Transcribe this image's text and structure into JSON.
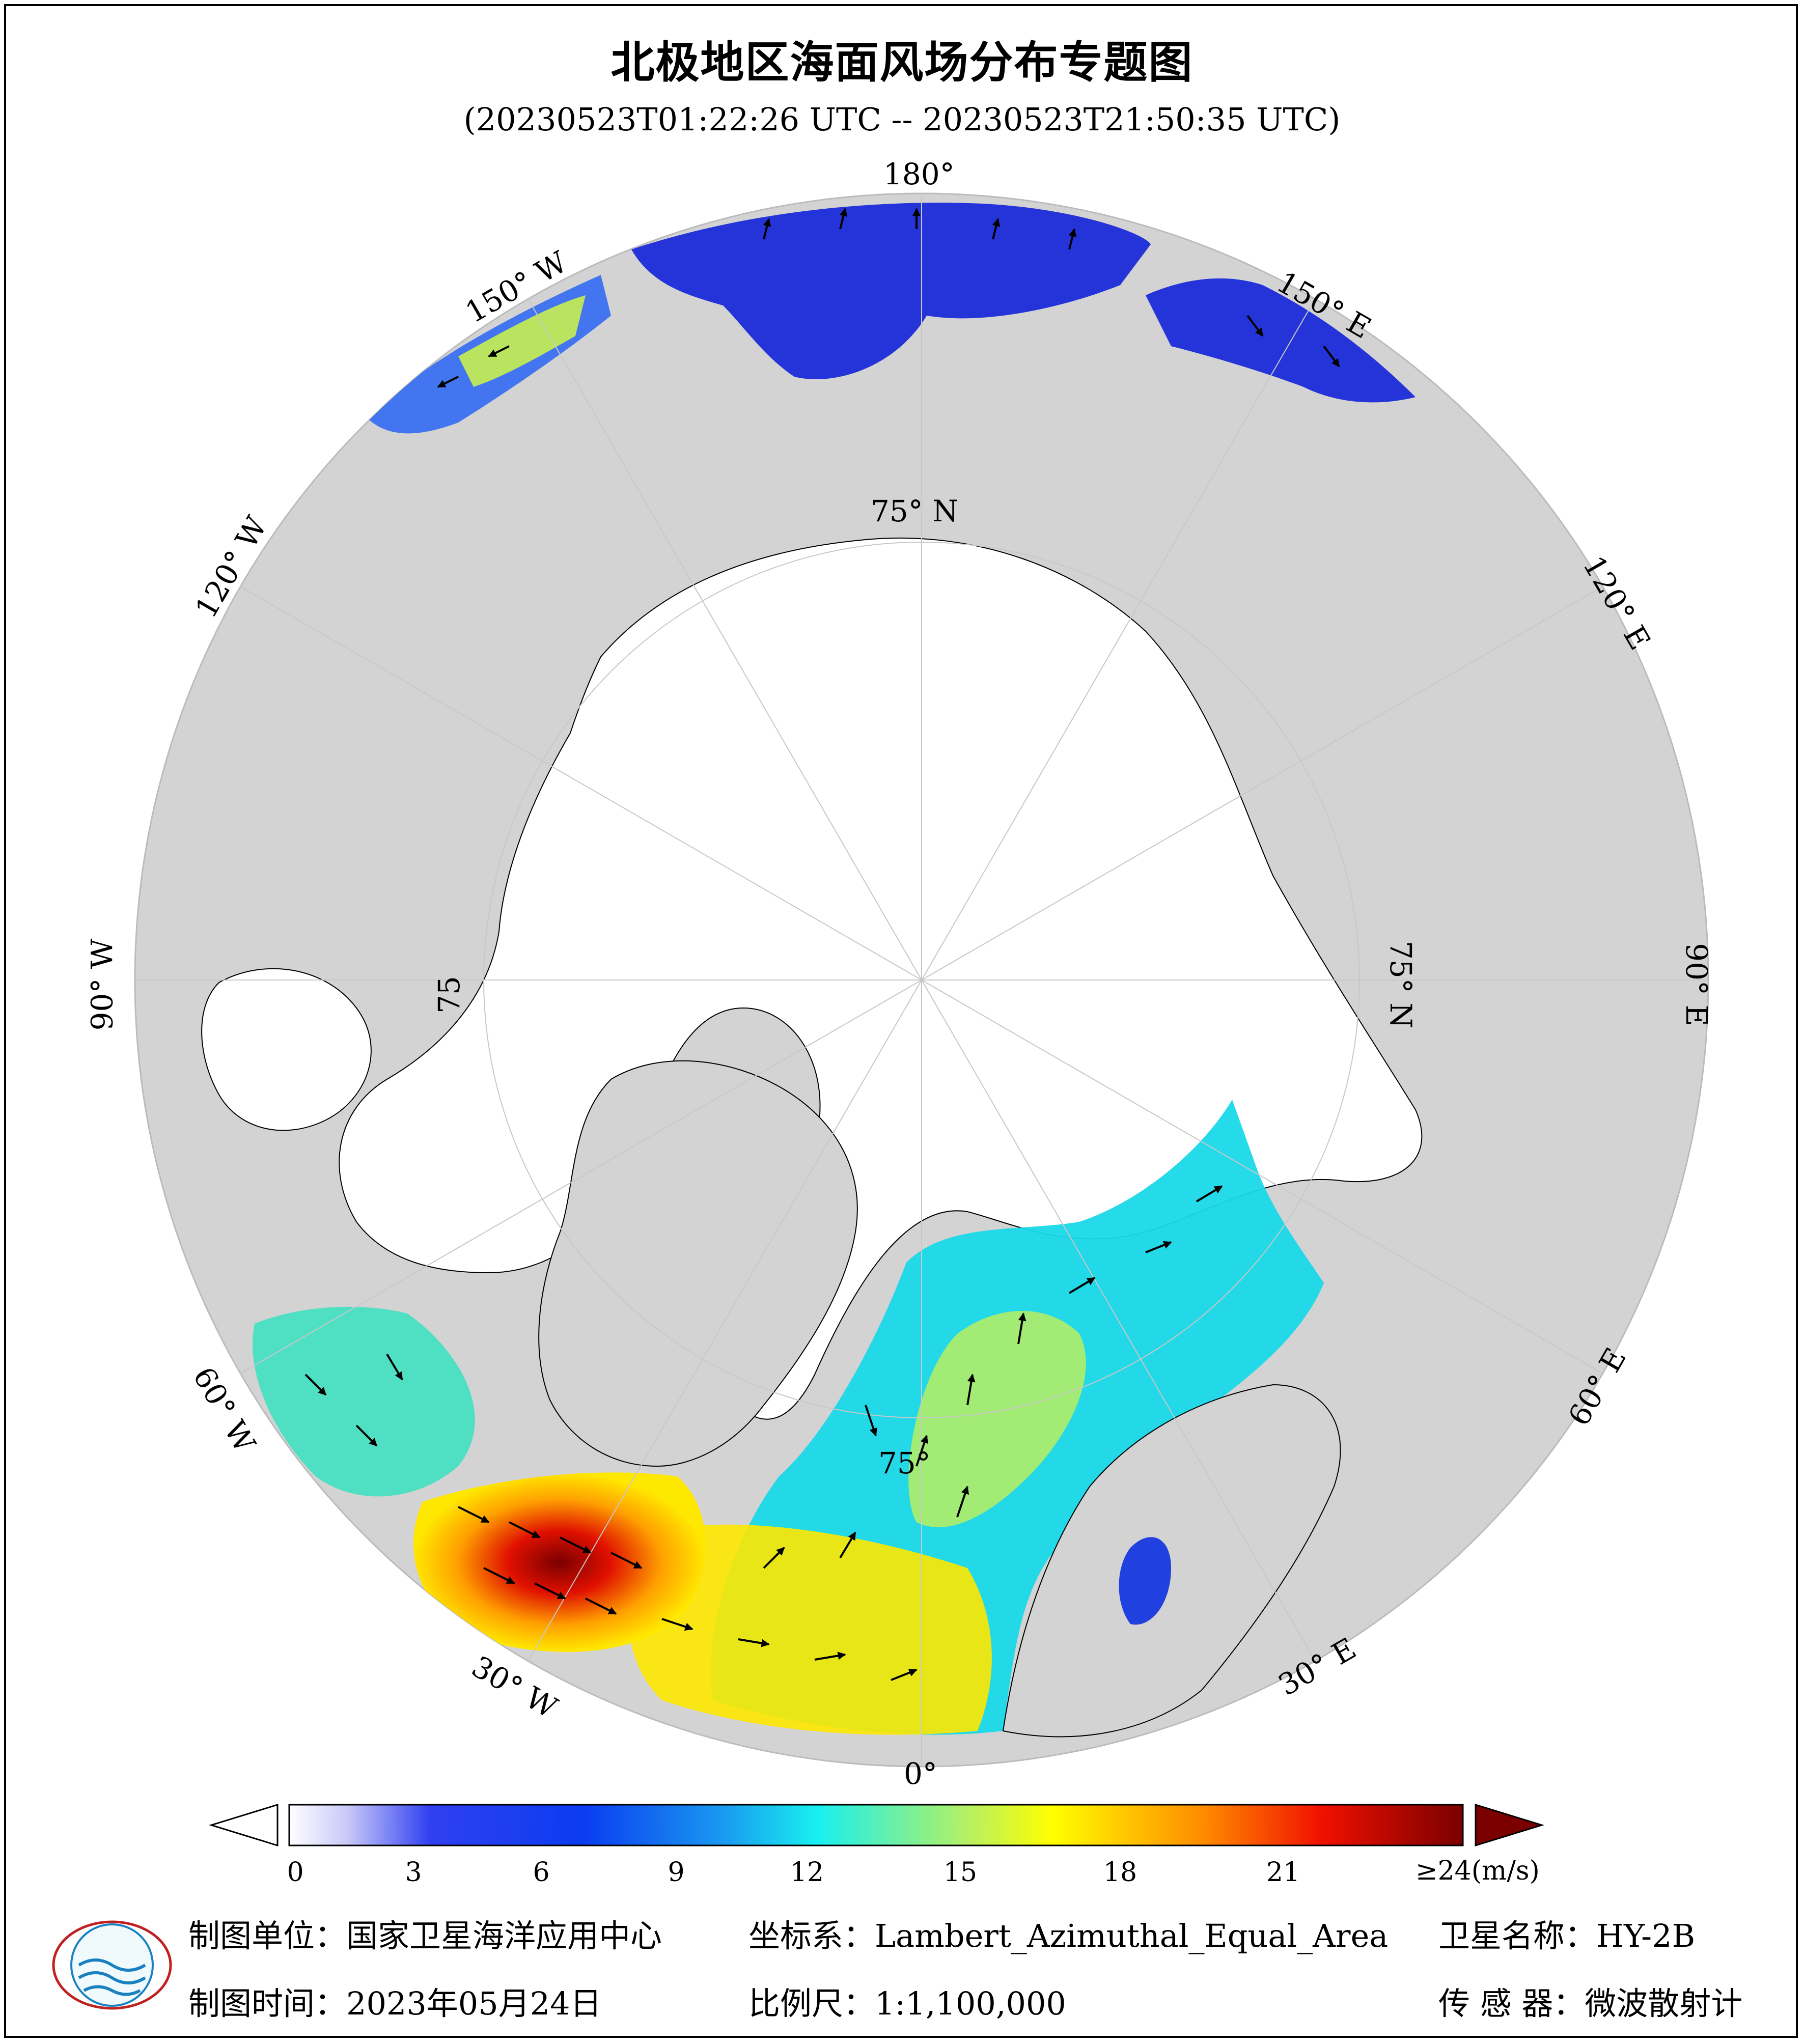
{
  "title": "北极地区海面风场分布专题图",
  "subtitle": "(20230523T01:22:26 UTC -- 20230523T21:50:35 UTC)",
  "graticule_labels": {
    "lon_180": "180°",
    "lon_150w": "150° W",
    "lon_150e": "150° E",
    "lon_120w": "120° W",
    "lon_120e": "120° E",
    "lon_90w": "90° W",
    "lon_90e": "90° E",
    "lon_60w": "60° W",
    "lon_60e": "60° E",
    "lon_30w": "30° W",
    "lon_30e": "30° E",
    "lon_0": "0°",
    "lat_75_top": "75° N",
    "lat_75_right": "75° N",
    "lat_75_left": "75",
    "lat_75_bottom": "75°"
  },
  "colorbar": {
    "unit_label": "≥24(m/s)",
    "ticks": [
      "0",
      "3",
      "6",
      "9",
      "12",
      "15",
      "18",
      "21"
    ],
    "min": 0,
    "max": 24
  },
  "colors": {
    "land": "#d3d3d3",
    "ice_ocean": "#ffffff",
    "outer_ocean": "#d3d3d3",
    "wind_low": "#1a2bd8",
    "wind_mid": "#19e3ea",
    "wind_high": "#ffec00",
    "wind_max": "#7a0000"
  },
  "footer": {
    "unit": "制图单位：国家卫星海洋应用中心",
    "crs": "坐标系：Lambert_Azimuthal_Equal_Area",
    "satellite": "卫星名称：HY-2B",
    "date": "制图时间：2023年05月24日",
    "scale": "比例尺：1:1,100,000",
    "sensor": "传 感 器：微波散射计"
  }
}
